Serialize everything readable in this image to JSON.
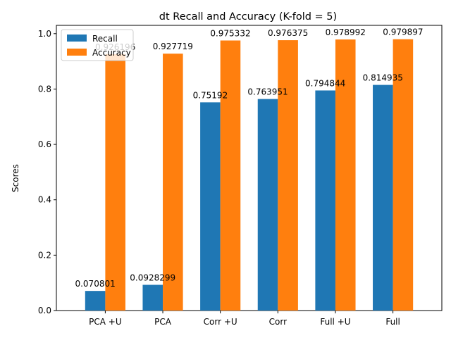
{
  "chart_data": {
    "type": "bar",
    "title": "dt Recall and Accuracy (K-fold = 5)",
    "xlabel": "",
    "ylabel": "Scores",
    "categories": [
      "PCA +U",
      "PCA",
      "Corr +U",
      "Corr",
      "Full +U",
      "Full"
    ],
    "series": [
      {
        "name": "Recall",
        "color": "#1f77b4",
        "values": [
          0.070801,
          0.0928299,
          0.75192,
          0.763951,
          0.794844,
          0.814935
        ],
        "labels": [
          "0.070801",
          "0.0928299",
          "0.75192",
          "0.763951",
          "0.794844",
          "0.814935"
        ]
      },
      {
        "name": "Accuracy",
        "color": "#ff7f0e",
        "values": [
          0.926196,
          0.927719,
          0.975332,
          0.976375,
          0.978992,
          0.979897
        ],
        "labels": [
          "0.926196",
          "0.927719",
          "0.975332",
          "0.976375",
          "0.978992",
          "0.979897"
        ]
      }
    ],
    "ylim": [
      0,
      1.03
    ],
    "yticks": [
      0.0,
      0.2,
      0.4,
      0.6,
      0.8,
      1.0
    ],
    "ytick_labels": [
      "0.0",
      "0.2",
      "0.4",
      "0.6",
      "0.8",
      "1.0"
    ],
    "grid": false,
    "legend": "top-left"
  }
}
